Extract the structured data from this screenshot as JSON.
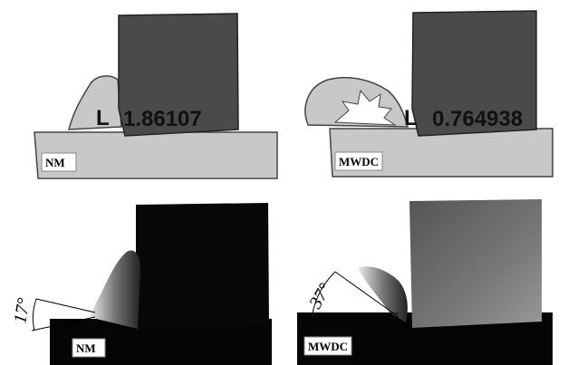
{
  "panels": [
    {
      "measure_symbol": "L",
      "measure_value": "1.86107",
      "label": "NM"
    },
    {
      "measure_symbol": "L",
      "measure_value": "0.764938",
      "label": "MWDC"
    },
    {
      "angle": "17°",
      "label": "NM"
    },
    {
      "angle": "37°",
      "label": "MWDC"
    }
  ]
}
